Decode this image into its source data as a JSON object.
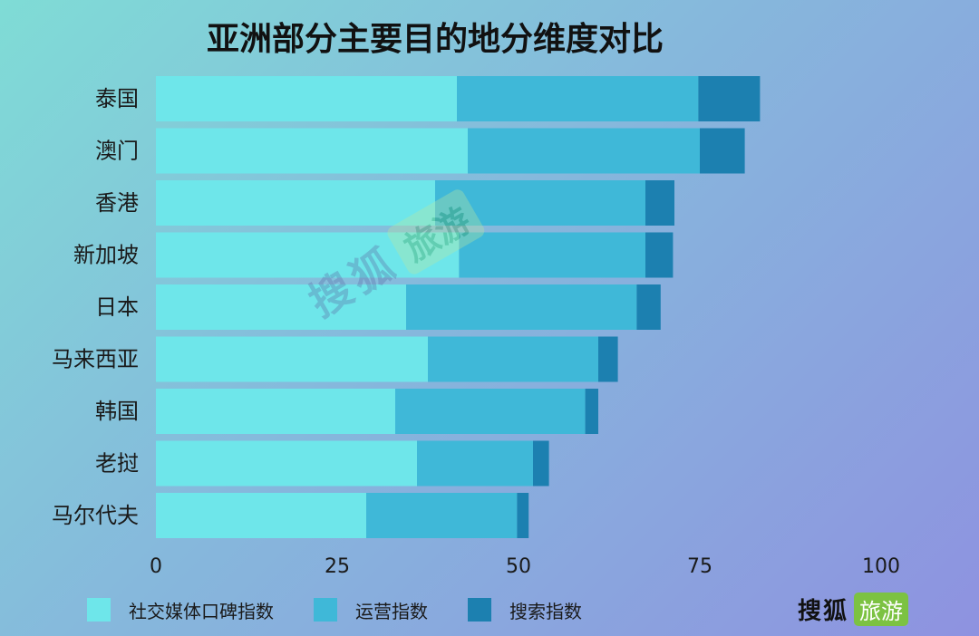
{
  "chart_data": {
    "type": "bar",
    "orientation": "horizontal",
    "stacked": true,
    "title": "亚洲部分主要目的地分维度对比",
    "categories": [
      "泰国",
      "澳门",
      "香港",
      "新加坡",
      "日本",
      "马来西亚",
      "韩国",
      "老挝",
      "马尔代夫"
    ],
    "series": [
      {
        "name": "社交媒体口碑指数",
        "color": "#6ee6ea",
        "values": [
          41.5,
          43,
          38.5,
          41.8,
          34.5,
          37.5,
          33,
          36,
          29
        ]
      },
      {
        "name": "运营指数",
        "color": "#3fb8d8",
        "values": [
          33.3,
          32,
          29,
          25.7,
          31.8,
          23.5,
          26.2,
          16,
          20.8
        ]
      },
      {
        "name": "搜索指数",
        "color": "#1c80b0",
        "values": [
          8.5,
          6.2,
          4,
          3.8,
          3.3,
          2.7,
          1.8,
          2.2,
          1.6
        ]
      }
    ],
    "xlim": [
      0,
      100
    ],
    "xticks": [
      "0",
      "25",
      "50",
      "75",
      "100"
    ],
    "grid": false,
    "legend_position": "bottom"
  },
  "watermark": {
    "text1": "搜狐",
    "text2": "旅游"
  },
  "logo": {
    "text1": "搜狐",
    "text2": "旅游",
    "color": "#7cc242"
  }
}
